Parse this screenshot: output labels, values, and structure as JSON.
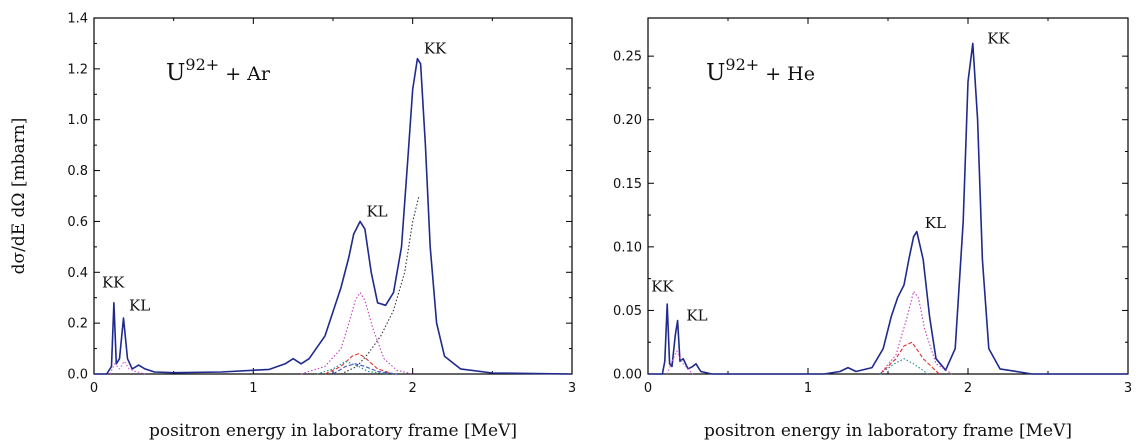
{
  "chart_data": [
    {
      "type": "line",
      "title_base": "U",
      "title_sup": "92+",
      "title_rest": " + Ar",
      "ylabel": "dσ/dE dΩ [mbarn]",
      "xlabel": "positron energy in laboratory frame [MeV]",
      "xlim": [
        0,
        3
      ],
      "ylim": [
        0,
        1.4
      ],
      "x_ticks": [
        "0",
        "1",
        "2",
        "3"
      ],
      "y_ticks": [
        "0.0",
        "0.2",
        "0.4",
        "0.6",
        "0.8",
        "1.0",
        "1.2",
        "1.4"
      ],
      "peak_labels": [
        {
          "text": "KK",
          "x": 2.07,
          "y": 1.26
        },
        {
          "text": "KL",
          "x": 1.71,
          "y": 0.62
        },
        {
          "text": "KK",
          "x": 0.05,
          "y": 0.34
        },
        {
          "text": "KL",
          "x": 0.22,
          "y": 0.25
        }
      ],
      "series": [
        {
          "color": "#1f2a8c",
          "style": "solid",
          "x": [
            0.0,
            0.08,
            0.11,
            0.125,
            0.14,
            0.16,
            0.185,
            0.21,
            0.24,
            0.28,
            0.32,
            0.38,
            0.5,
            0.8,
            1.1,
            1.2,
            1.25,
            1.3,
            1.35,
            1.45,
            1.55,
            1.6,
            1.63,
            1.67,
            1.7,
            1.74,
            1.78,
            1.83,
            1.88,
            1.93,
            1.97,
            2.0,
            2.03,
            2.05,
            2.08,
            2.11,
            2.15,
            2.2,
            2.3,
            2.5,
            3.0
          ],
          "y": [
            0.0,
            0.0,
            0.03,
            0.28,
            0.04,
            0.06,
            0.22,
            0.06,
            0.02,
            0.035,
            0.02,
            0.008,
            0.005,
            0.008,
            0.018,
            0.04,
            0.06,
            0.04,
            0.06,
            0.15,
            0.34,
            0.46,
            0.55,
            0.6,
            0.57,
            0.4,
            0.28,
            0.27,
            0.32,
            0.5,
            0.85,
            1.12,
            1.24,
            1.22,
            0.9,
            0.5,
            0.2,
            0.07,
            0.02,
            0.004,
            0.0
          ]
        },
        {
          "color": "#c23fc4",
          "style": "dotted",
          "x": [
            1.3,
            1.45,
            1.55,
            1.6,
            1.64,
            1.67,
            1.7,
            1.75,
            1.82,
            1.9,
            2.0
          ],
          "y": [
            0.0,
            0.03,
            0.1,
            0.2,
            0.29,
            0.32,
            0.29,
            0.18,
            0.06,
            0.015,
            0.0
          ]
        },
        {
          "color": "#333333",
          "style": "dotted",
          "x": [
            1.55,
            1.65,
            1.72,
            1.8,
            1.88,
            1.95,
            2.0,
            2.04
          ],
          "y": [
            0.0,
            0.03,
            0.08,
            0.15,
            0.25,
            0.4,
            0.6,
            0.7
          ]
        },
        {
          "color": "#e03030",
          "style": "dashed",
          "x": [
            1.45,
            1.55,
            1.62,
            1.66,
            1.7,
            1.78,
            1.88
          ],
          "y": [
            0.0,
            0.03,
            0.07,
            0.08,
            0.065,
            0.02,
            0.0
          ]
        },
        {
          "color": "#1a8a8a",
          "style": "dotted",
          "x": [
            1.4,
            1.5,
            1.58,
            1.62,
            1.66,
            1.72,
            1.85
          ],
          "y": [
            0.0,
            0.02,
            0.05,
            0.04,
            0.03,
            0.01,
            0.0
          ]
        },
        {
          "color": "#3a50c8",
          "style": "dashed",
          "x": [
            1.5,
            1.58,
            1.64,
            1.7,
            1.78,
            1.9
          ],
          "y": [
            0.0,
            0.03,
            0.04,
            0.03,
            0.01,
            0.0
          ]
        },
        {
          "color": "#e24fe2",
          "style": "dotted",
          "x": [
            0.1,
            0.13,
            0.16,
            0.19,
            0.22,
            0.26,
            0.32
          ],
          "y": [
            0.0,
            0.04,
            0.02,
            0.05,
            0.02,
            0.01,
            0.0
          ]
        }
      ]
    },
    {
      "type": "line",
      "title_base": "U",
      "title_sup": "92+",
      "title_rest": " + He",
      "ylabel": "",
      "xlabel": "positron energy in laboratory frame [MeV]",
      "xlim": [
        0,
        3
      ],
      "ylim": [
        0,
        0.28
      ],
      "x_ticks": [
        "0",
        "1",
        "2",
        "3"
      ],
      "y_ticks": [
        "0.00",
        "0.05",
        "0.10",
        "0.15",
        "0.20",
        "0.25"
      ],
      "peak_labels": [
        {
          "text": "KK",
          "x": 2.12,
          "y": 0.26
        },
        {
          "text": "KL",
          "x": 1.73,
          "y": 0.115
        },
        {
          "text": "KK",
          "x": 0.02,
          "y": 0.065
        },
        {
          "text": "KL",
          "x": 0.24,
          "y": 0.042
        }
      ],
      "series": [
        {
          "color": "#1f2a8c",
          "style": "solid",
          "x": [
            0.0,
            0.09,
            0.105,
            0.12,
            0.135,
            0.15,
            0.17,
            0.185,
            0.2,
            0.22,
            0.25,
            0.28,
            0.3,
            0.33,
            0.4,
            1.1,
            1.2,
            1.25,
            1.3,
            1.4,
            1.47,
            1.52,
            1.56,
            1.6,
            1.63,
            1.66,
            1.68,
            1.72,
            1.76,
            1.8,
            1.86,
            1.92,
            1.97,
            2.0,
            2.03,
            2.06,
            2.09,
            2.13,
            2.2,
            2.4,
            3.0
          ],
          "y": [
            0.0,
            0.0,
            0.01,
            0.055,
            0.008,
            0.006,
            0.03,
            0.042,
            0.01,
            0.012,
            0.004,
            0.006,
            0.008,
            0.002,
            0.0,
            0.0,
            0.002,
            0.005,
            0.002,
            0.005,
            0.02,
            0.045,
            0.06,
            0.07,
            0.09,
            0.108,
            0.112,
            0.09,
            0.045,
            0.012,
            0.003,
            0.02,
            0.12,
            0.23,
            0.26,
            0.2,
            0.09,
            0.02,
            0.004,
            0.0,
            0.0
          ]
        },
        {
          "color": "#c23fc4",
          "style": "dotted",
          "x": [
            1.45,
            1.55,
            1.62,
            1.66,
            1.69,
            1.73,
            1.8,
            1.9
          ],
          "y": [
            0.0,
            0.015,
            0.045,
            0.065,
            0.06,
            0.035,
            0.008,
            0.0
          ]
        },
        {
          "color": "#e03030",
          "style": "dashed",
          "x": [
            1.45,
            1.55,
            1.6,
            1.65,
            1.72,
            1.82
          ],
          "y": [
            0.0,
            0.012,
            0.022,
            0.025,
            0.012,
            0.0
          ]
        },
        {
          "color": "#1a8a8a",
          "style": "dotted",
          "x": [
            1.45,
            1.54,
            1.6,
            1.66,
            1.75
          ],
          "y": [
            0.0,
            0.008,
            0.012,
            0.008,
            0.0
          ]
        },
        {
          "color": "#e24fe2",
          "style": "dotted",
          "x": [
            0.12,
            0.15,
            0.18,
            0.22,
            0.28
          ],
          "y": [
            0.0,
            0.01,
            0.018,
            0.008,
            0.0
          ]
        }
      ]
    }
  ]
}
